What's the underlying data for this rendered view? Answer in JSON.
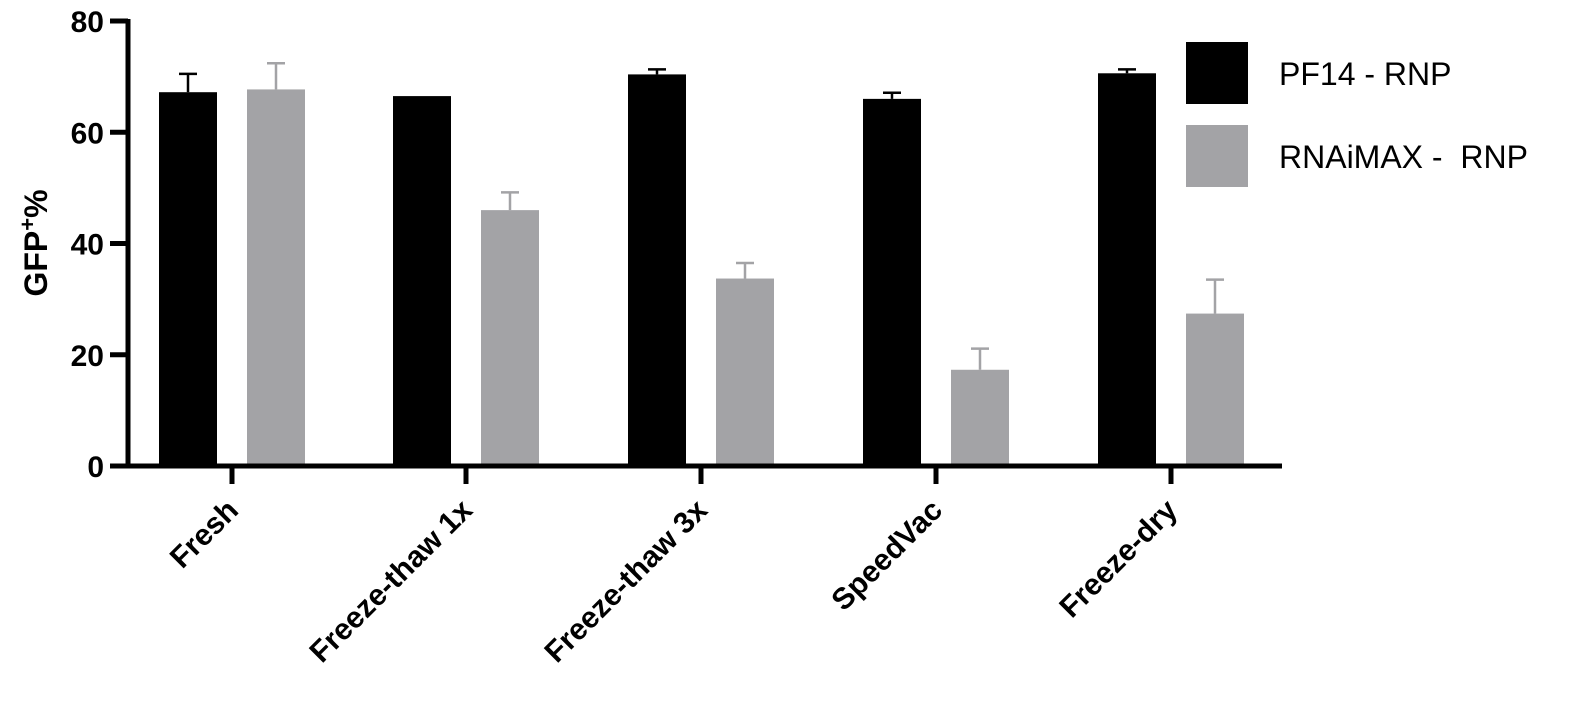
{
  "chart_data": {
    "type": "bar",
    "categories": [
      "Fresh",
      "Freeze-thaw 1x",
      "Freeze-thaw 3x",
      "SpeedVac",
      "Freeze-dry"
    ],
    "series": [
      {
        "name": "PF14 - RNP",
        "color": "#000000",
        "values": [
          67.2,
          66.5,
          70.4,
          66.0,
          70.6
        ],
        "errors": [
          3.3,
          0.0,
          0.9,
          1.1,
          0.7
        ]
      },
      {
        "name": "RNAiMAX -  RNP",
        "color": "#a3a3a6",
        "values": [
          67.7,
          46.0,
          33.7,
          17.3,
          27.4
        ],
        "errors": [
          4.7,
          3.2,
          2.8,
          3.8,
          6.1
        ]
      }
    ],
    "ylabel": "GFP",
    "ylabel_sup": "+",
    "ylabel_suffix": "%",
    "ylim": [
      0,
      80
    ],
    "yticks": [
      "0",
      "20",
      "40",
      "60",
      "80"
    ],
    "legend_position": "top-right",
    "grid": false
  }
}
